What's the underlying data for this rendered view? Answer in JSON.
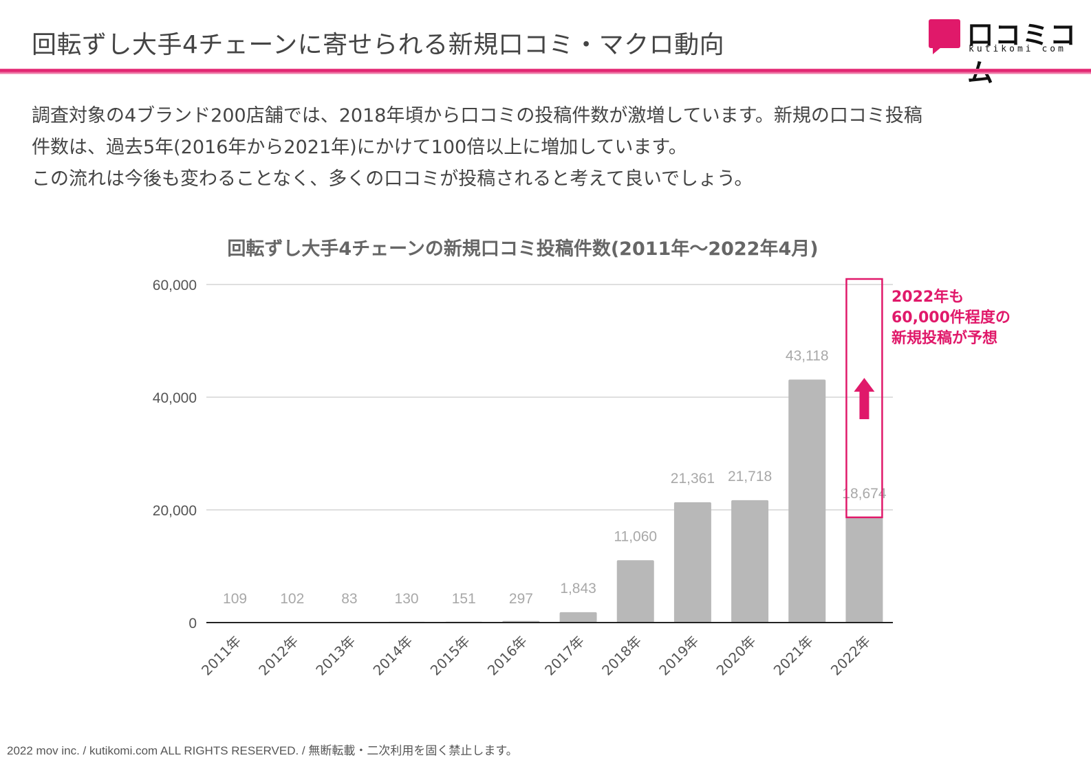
{
  "header": {
    "title": "回転ずし大手4チェーンに寄せられる新規口コミ・マクロ動向"
  },
  "logo": {
    "text": "口コミコム",
    "subtitle": "kutikomi com"
  },
  "colors": {
    "accent": "#e0196a",
    "bar": "#b8b8b8",
    "grid": "#cccccc"
  },
  "description": {
    "line1": "調査対象の4ブランド200店舗では、2018年頃から口コミの投稿件数が激増しています。新規の口コミ投稿",
    "line2": "件数は、過去5年(2016年から2021年)にかけて100倍以上に増加しています。",
    "line3": "この流れは今後も変わることなく、多くの口コミが投稿されると考えて良いでしょう。"
  },
  "chart_data": {
    "type": "bar",
    "title": "回転ずし大手4チェーンの新規口コミ投稿件数(2011年～2022年4月)",
    "categories": [
      "2011年",
      "2012年",
      "2013年",
      "2014年",
      "2015年",
      "2016年",
      "2017年",
      "2018年",
      "2019年",
      "2020年",
      "2021年",
      "2022年"
    ],
    "values": [
      109,
      102,
      83,
      130,
      151,
      297,
      1843,
      11060,
      21361,
      21718,
      43118,
      18674
    ],
    "value_labels": [
      "109",
      "102",
      "83",
      "130",
      "151",
      "297",
      "1,843",
      "11,060",
      "21,361",
      "21,718",
      "43,118",
      "18,674"
    ],
    "y_ticks": [
      0,
      20000,
      40000,
      60000
    ],
    "y_tick_labels": [
      "0",
      "20,000",
      "40,000",
      "60,000"
    ],
    "ylim": [
      0,
      60000
    ],
    "xlabel": "",
    "ylabel": "",
    "grid": true,
    "highlight_projection": 60000
  },
  "callout": {
    "line1": "2022年も",
    "line2": "60,000件程度の",
    "line3": "新規投稿が予想"
  },
  "footer": {
    "text": "2022 mov inc. / kutikomi.com ALL RIGHTS RESERVED. / 無断転載・二次利用を固く禁止します。"
  }
}
